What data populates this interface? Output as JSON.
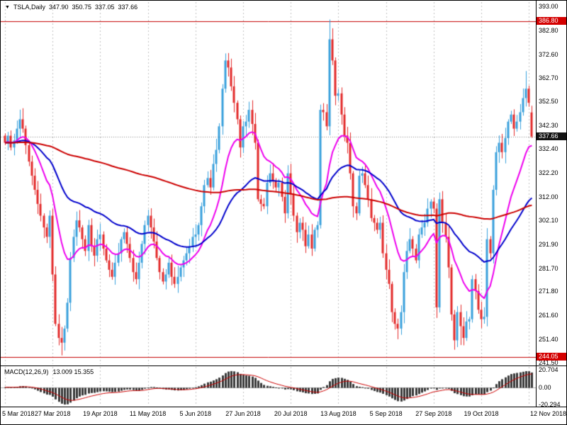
{
  "symbol_bar": {
    "dropdown_icon": "▼",
    "symbol": "TSLA,Daily",
    "open": "347.90",
    "high": "350.75",
    "low": "337.05",
    "close": "337.66"
  },
  "chart_data": {
    "type": "candlestick",
    "title": "TSLA,Daily",
    "y_range": [
      241.5,
      393.0
    ],
    "y_ticks": [
      "393.00",
      "382.80",
      "372.60",
      "362.70",
      "352.50",
      "342.30",
      "332.40",
      "322.20",
      "312.00",
      "302.10",
      "291.90",
      "281.70",
      "271.80",
      "261.60",
      "251.40",
      "241.50"
    ],
    "x_labels": [
      "5 Mar 2018",
      "27 Mar 2018",
      "19 Apr 2018",
      "11 May 2018",
      "5 Jun 2018",
      "27 Jun 2018",
      "20 Jul 2018",
      "13 Aug 2018",
      "5 Sep 2018",
      "27 Sep 2018",
      "19 Oct 2018",
      "12 Nov 2018"
    ],
    "price_lines": [
      {
        "name": "resistance",
        "value": 386.8,
        "color": "#c40000"
      },
      {
        "name": "support",
        "value": 244.05,
        "color": "#c40000"
      }
    ],
    "current_price": 337.66,
    "badges": {
      "resistance": "386.80",
      "support": "244.05",
      "current": "337.66"
    },
    "candles": {
      "closes": [
        335,
        338,
        333,
        336,
        341,
        345,
        341,
        334,
        327,
        321,
        315,
        309,
        304,
        299,
        295,
        304,
        279,
        258,
        252,
        250,
        256,
        267,
        286,
        295,
        302,
        299,
        294,
        289,
        300,
        291,
        287,
        294,
        296,
        290,
        285,
        281,
        278,
        284,
        288,
        294,
        297,
        292,
        286,
        280,
        277,
        284,
        292,
        300,
        304,
        299,
        293,
        286,
        280,
        276,
        279,
        284,
        278,
        275,
        278,
        282,
        285,
        288,
        291,
        295,
        296,
        300,
        308,
        317,
        320,
        316,
        326,
        332,
        342,
        358,
        370,
        367,
        359,
        352,
        345,
        333,
        342,
        344,
        349,
        343,
        335,
        311,
        309,
        308,
        318,
        322,
        319,
        316,
        318,
        312,
        305,
        322,
        313,
        304,
        297,
        301,
        298,
        291,
        296,
        290,
        298,
        300,
        349,
        348,
        342,
        379,
        370,
        355,
        356,
        347,
        338,
        335,
        322,
        308,
        305,
        321,
        322,
        317,
        311,
        303,
        301,
        298,
        301,
        288,
        281,
        275,
        263,
        258,
        256,
        263,
        280,
        289,
        294,
        290,
        285,
        296,
        299,
        301,
        307,
        310,
        307,
        265,
        311,
        301,
        295,
        282,
        262,
        251,
        263,
        257,
        252,
        259,
        260,
        277,
        272,
        264,
        260,
        261,
        294,
        288,
        315,
        331,
        335,
        331,
        337,
        344,
        347,
        341,
        344,
        348,
        354,
        358,
        352,
        337.66
      ],
      "overrides": {
        "19": {
          "low": 244.6
        },
        "74": {
          "high": 373.0
        },
        "109": {
          "high": 387.4
        },
        "145": {
          "low": 260.5
        },
        "151": {
          "low": 247.0
        },
        "153": {
          "low": 249.0
        },
        "175": {
          "high": 365.5
        },
        "177": {
          "open": 347.9,
          "high": 350.75,
          "low": 337.05
        }
      }
    },
    "moving_averages": [
      {
        "name": "ma-fast",
        "type": "ema",
        "period": 15,
        "color_key": "ma_fast"
      },
      {
        "name": "ma-mid",
        "type": "ema",
        "period": 45,
        "color_key": "ma_mid"
      },
      {
        "name": "ma-slow",
        "type": "sma",
        "period": 130,
        "color_key": "ma_slow"
      }
    ],
    "macd": {
      "label": "MACD(12,26,9)",
      "values": "13.009 15.355",
      "fast": 12,
      "slow": 26,
      "signal": 9,
      "ticks": [
        "20.704",
        "0.00",
        "-20.294"
      ],
      "range": [
        -20.294,
        20.704
      ]
    },
    "colors": {
      "bull": "#3aa0dc",
      "bear": "#e32b2b",
      "ma_fast": "#ee00ee",
      "ma_mid": "#0000cc",
      "ma_slow": "#cc0000",
      "macd_hist": "#3a3a3a",
      "macd_signal": "#cc0000",
      "badge_red": "#d40000",
      "badge_dark": "#141414",
      "grid": "#c0c0c0"
    }
  }
}
